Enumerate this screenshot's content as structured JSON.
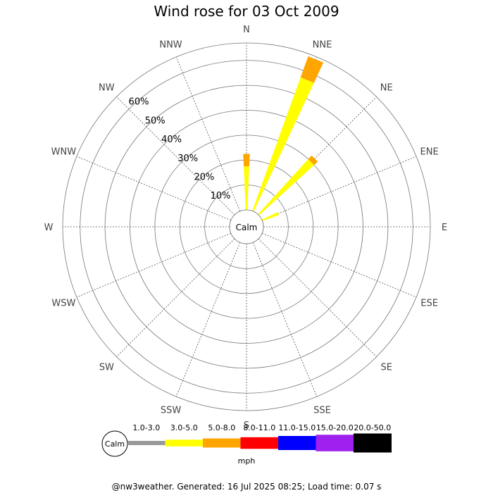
{
  "title": "Wind rose for 03 Oct 2009",
  "footer": "@nw3weather. Generated: 16 Jul 2025 08:25; Load time: 0.07 s",
  "chart_data": {
    "type": "wind-rose",
    "title": "Wind rose for 03 Oct 2009",
    "directions": [
      "N",
      "NNE",
      "NE",
      "ENE",
      "E",
      "ESE",
      "SE",
      "SSE",
      "S",
      "SSW",
      "SW",
      "WSW",
      "W",
      "WNW",
      "NW",
      "NNW"
    ],
    "rings": [
      "10%",
      "20%",
      "30%",
      "40%",
      "50%",
      "60%"
    ],
    "rlim": [
      0,
      67
    ],
    "calm_label": "Calm",
    "grid": true,
    "units": "mph",
    "speed_bins": [
      {
        "label": "1.0-3.0",
        "color": "#999999"
      },
      {
        "label": "3.0-5.0",
        "color": "#ffff00"
      },
      {
        "label": "5.0-8.0",
        "color": "#ffa500"
      },
      {
        "label": "8.0-11.0",
        "color": "#ff0000"
      },
      {
        "label": "11.0-15.0",
        "color": "#0000ff"
      },
      {
        "label": "15.0-20.0",
        "color": "#a020f0"
      },
      {
        "label": "20.0-50.0",
        "color": "#000000"
      }
    ],
    "series": [
      {
        "name": "1.0-3.0",
        "values": [
          0,
          0,
          0,
          0,
          0,
          0,
          0,
          0,
          0,
          0,
          0,
          0,
          0,
          0,
          0,
          0
        ]
      },
      {
        "name": "3.0-5.0",
        "values": [
          17.5,
          57,
          30,
          7,
          0,
          0,
          0,
          0,
          0,
          0,
          0,
          0,
          0,
          0,
          0,
          0
        ]
      },
      {
        "name": "5.0-8.0",
        "values": [
          5,
          9,
          2,
          0,
          0,
          0,
          0,
          0,
          0,
          0,
          0,
          0,
          0,
          0,
          0,
          0
        ]
      },
      {
        "name": "8.0-11.0",
        "values": [
          0,
          0,
          0,
          0,
          0,
          0,
          0,
          0,
          0,
          0,
          0,
          0,
          0,
          0,
          0,
          0
        ]
      },
      {
        "name": "11.0-15.0",
        "values": [
          0,
          0,
          0,
          0,
          0,
          0,
          0,
          0,
          0,
          0,
          0,
          0,
          0,
          0,
          0,
          0
        ]
      },
      {
        "name": "15.0-20.0",
        "values": [
          0,
          0,
          0,
          0,
          0,
          0,
          0,
          0,
          0,
          0,
          0,
          0,
          0,
          0,
          0,
          0
        ]
      },
      {
        "name": "20.0-50.0",
        "values": [
          0,
          0,
          0,
          0,
          0,
          0,
          0,
          0,
          0,
          0,
          0,
          0,
          0,
          0,
          0,
          0
        ]
      }
    ]
  }
}
